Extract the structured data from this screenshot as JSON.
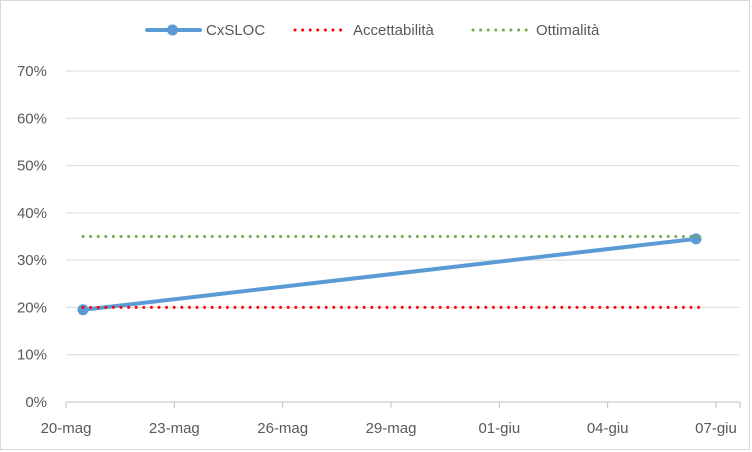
{
  "chart_data": {
    "type": "line",
    "title": "",
    "xlabel": "",
    "ylabel": "",
    "x_tick_labels": [
      "20-mag",
      "23-mag",
      "26-mag",
      "29-mag",
      "01-giu",
      "04-giu",
      "07-giu"
    ],
    "y_tick_labels": [
      "0%",
      "10%",
      "20%",
      "30%",
      "40%",
      "50%",
      "60%",
      "70%"
    ],
    "y_tick_values": [
      0,
      0.1,
      0.2,
      0.3,
      0.4,
      0.5,
      0.6,
      0.7
    ],
    "ylim": [
      0,
      0.7
    ],
    "xlim": [
      "2024-05-20",
      "2024-06-07"
    ],
    "grid": "horizontal",
    "legend_position": "top",
    "series": [
      {
        "name": "CxSLOC",
        "color": "#5b9bd5",
        "style": "solid-with-markers",
        "points": [
          {
            "x": "2024-05-20",
            "y": 0.195
          },
          {
            "x": "2024-06-07",
            "y": 0.345
          }
        ]
      },
      {
        "name": "Accettabilità",
        "color": "#ff0000",
        "style": "dotted",
        "points": [
          {
            "x": "2024-05-20",
            "y": 0.2
          },
          {
            "x": "2024-06-07",
            "y": 0.2
          }
        ]
      },
      {
        "name": "Ottimalità",
        "color": "#70ad47",
        "style": "dotted",
        "points": [
          {
            "x": "2024-05-20",
            "y": 0.35
          },
          {
            "x": "2024-06-07",
            "y": 0.35
          }
        ]
      }
    ]
  }
}
